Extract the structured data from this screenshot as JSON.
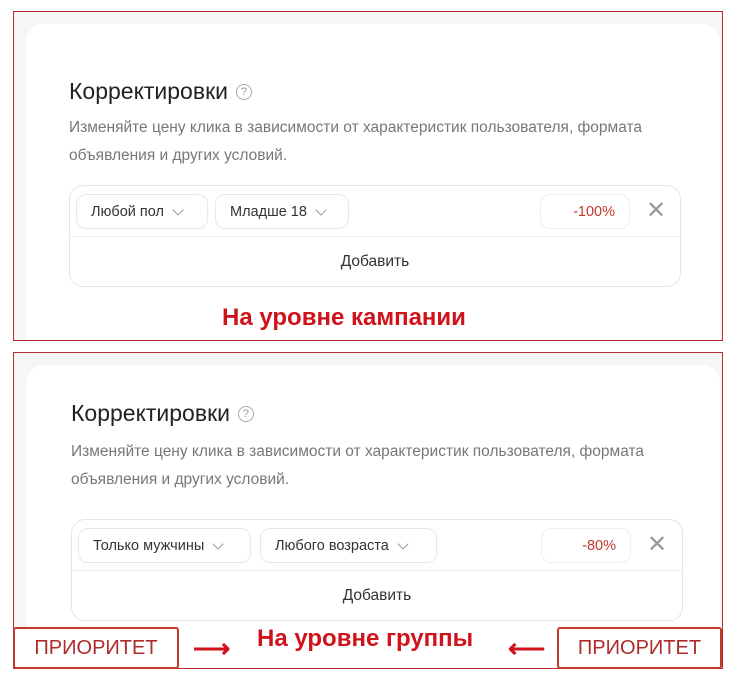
{
  "campaign": {
    "title": "Корректировки",
    "help_icon": "question-circle-icon",
    "description": "Изменяйте цену клика в зависимости от характеристик пользователя, формата объявления и других условий.",
    "gender": "Любой пол",
    "age": "Младше 18",
    "value": "-100%",
    "add_label": "Добавить",
    "annotation": "На уровне кампании"
  },
  "group": {
    "title": "Корректировки",
    "help_icon": "question-circle-icon",
    "description": "Изменяйте цену клика в зависимости от характеристик пользователя, формата объявления и других условий.",
    "gender": "Только мужчины",
    "age": "Любого возраста",
    "value": "-80%",
    "add_label": "Добавить",
    "annotation": "На уровне группы"
  },
  "priority_left": "ПРИОРИТЕТ",
  "priority_right": "ПРИОРИТЕТ",
  "colors": {
    "annotation": "#d0121b",
    "border": "#b03030",
    "value": "#c0392b"
  }
}
